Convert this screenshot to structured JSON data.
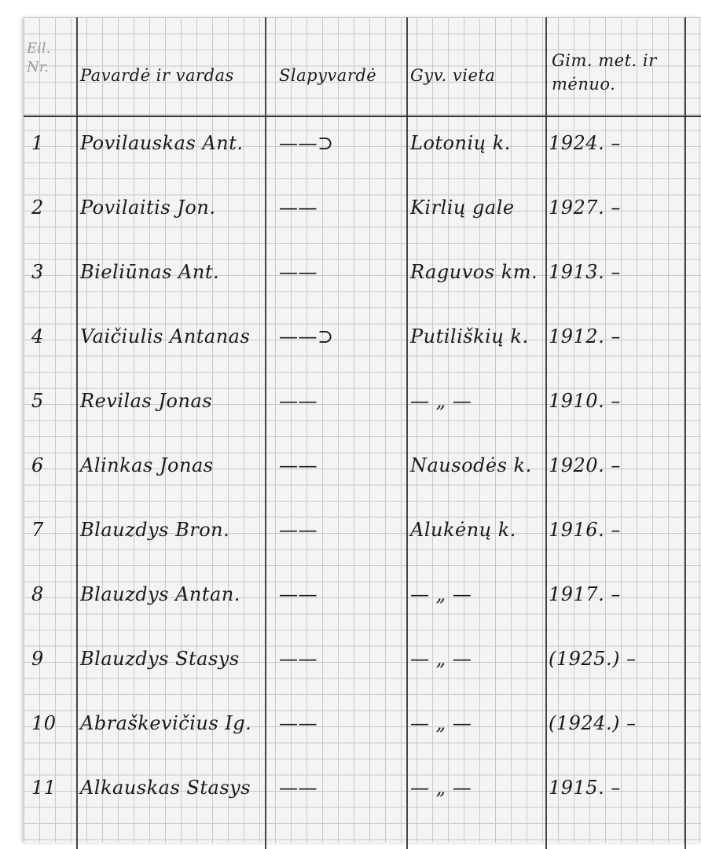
{
  "header": {
    "number": "Eil. Nr.",
    "name": "Pavardė ir vardas",
    "alias": "Slapyvardė",
    "residence": "Gyv. vieta",
    "birth": "Gim. met. ir mėnuo."
  },
  "rows": [
    {
      "number": "1",
      "name": "Povilauskas Ant.",
      "alias": "——⊃",
      "residence": "Lotonių k.",
      "year": "1924. –"
    },
    {
      "number": "2",
      "name": "Povilaitis Jon.",
      "alias": "——",
      "residence": "Kirlių gale",
      "year": "1927. –"
    },
    {
      "number": "3",
      "name": "Bieliūnas Ant.",
      "alias": "——",
      "residence": "Raguvos km.",
      "year": "1913. –"
    },
    {
      "number": "4",
      "name": "Vaičiulis Antanas",
      "alias": "——⊃",
      "residence": "Putiliškių k.",
      "year": "1912. –"
    },
    {
      "number": "5",
      "name": "Revilas Jonas",
      "alias": "——",
      "residence": "— „ —",
      "year": "1910. –"
    },
    {
      "number": "6",
      "name": "Alinkas Jonas",
      "alias": "——",
      "residence": "Nausodės k.",
      "year": "1920. –"
    },
    {
      "number": "7",
      "name": "Blauzdys Bron.",
      "alias": "——",
      "residence": "Alukėnų k.",
      "year": "1916. –"
    },
    {
      "number": "8",
      "name": "Blauzdys Antan.",
      "alias": "——",
      "residence": "— „ —",
      "year": "1917. –"
    },
    {
      "number": "9",
      "name": "Blauzdys Stasys",
      "alias": "——",
      "residence": "— „ —",
      "year": "(1925.) –"
    },
    {
      "number": "10",
      "name": "Abraškevičius Ig.",
      "alias": "——",
      "residence": "— „ —",
      "year": "(1924.) –"
    },
    {
      "number": "11",
      "name": "Alkauskas Stasys",
      "alias": "——",
      "residence": "— „ —",
      "year": "1915. –"
    }
  ]
}
